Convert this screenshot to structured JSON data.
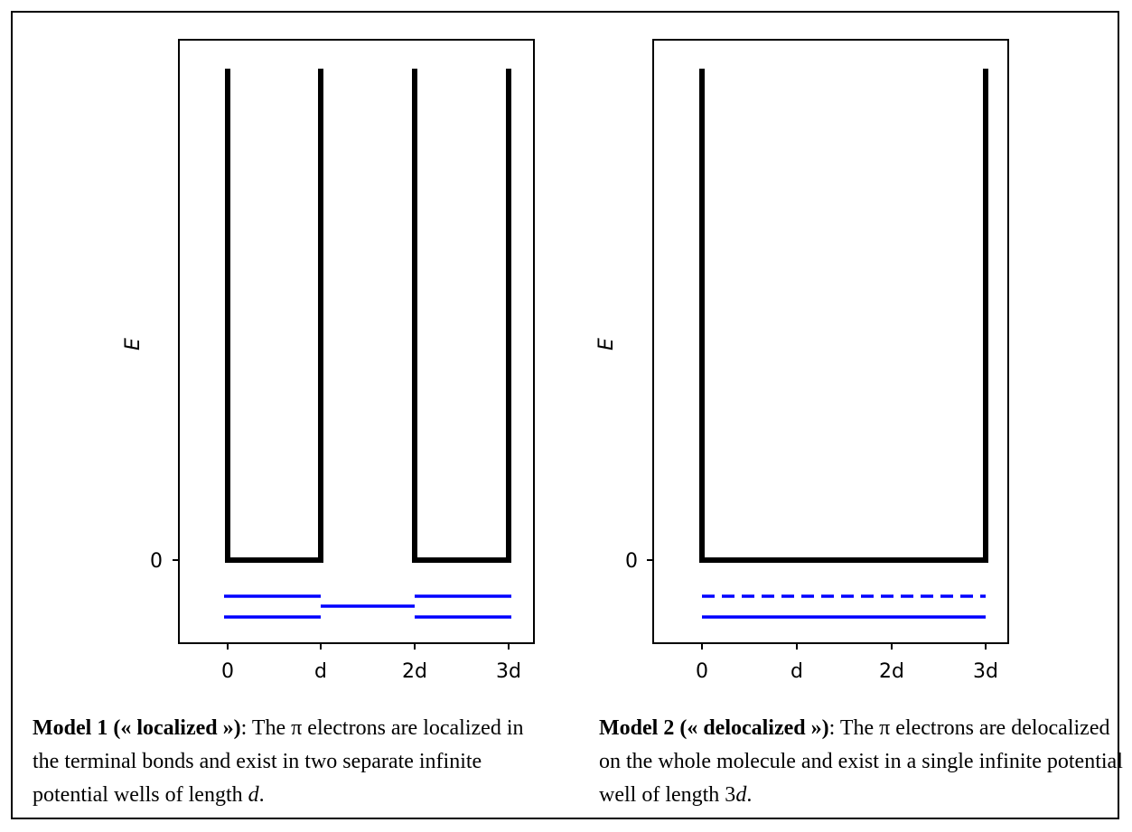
{
  "panels": [
    {
      "ylabel": "E",
      "ytick": "0",
      "xticks": [
        "0",
        "d",
        "2d",
        "3d"
      ],
      "caption": {
        "title": "Model 1 (« localized »)",
        "text_before": ": The π electrons are localized in the terminal bonds and exist in two separate infinite potential wells of length ",
        "italic": "d",
        "text_after": "."
      }
    },
    {
      "ylabel": "E",
      "ytick": "0",
      "xticks": [
        "0",
        "d",
        "2d",
        "3d"
      ],
      "caption": {
        "title": "Model 2 (« delocalized »)",
        "text_before": ": The π electrons are delocalized on the whole molecule and exist in a single infinite potential well of length 3",
        "italic": "d",
        "text_after": "."
      }
    }
  ],
  "colors": {
    "wall": "#000000",
    "level": "#0000ff"
  }
}
